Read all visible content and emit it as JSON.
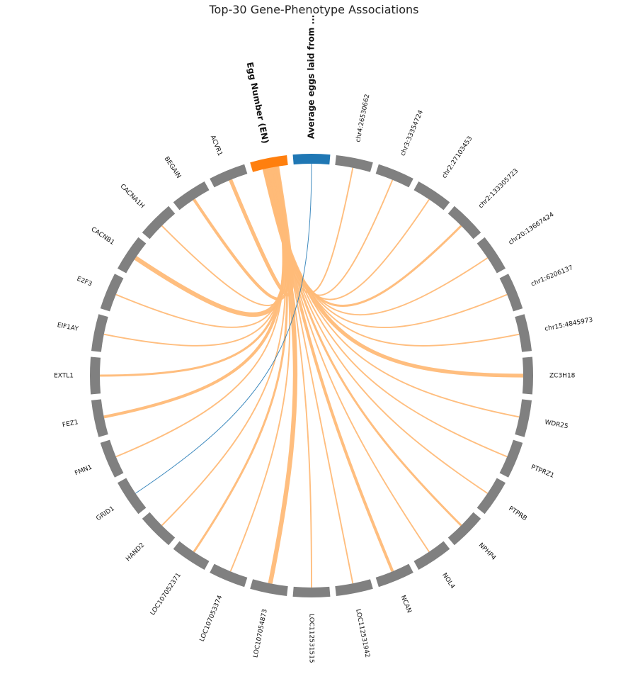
{
  "chart_data": {
    "type": "chord",
    "title": "Top-30 Gene-Phenotype Associations",
    "colors": {
      "phenotype_primary": "#ff7f0e",
      "phenotype_secondary": "#1f77b4",
      "gene": "#808080",
      "link_primary": "#ffbb78"
    },
    "phenotypes": [
      {
        "label": "Egg Number (EN)",
        "color": "#ff7f0e"
      },
      {
        "label": "Average eggs laid from ...",
        "color": "#1f77b4"
      }
    ],
    "genes": [
      "chr4:26530662",
      "chr3:33354724",
      "chr2:27103453",
      "chr2:133305723",
      "chr20:13667424",
      "chr1:6206137",
      "chr15:4845973",
      "ZC3H18",
      "WDR25",
      "PTPRZ1",
      "PTPRB",
      "NPHP4",
      "NOL4",
      "NCAN",
      "LOC112531942",
      "LOC112531515",
      "LOC107054873",
      "LOC107053374",
      "LOC107052371",
      "HAND2",
      "GRID1",
      "FMN1",
      "FEZ1",
      "EXTL1",
      "EIF1AY",
      "E2F3",
      "CACNB1",
      "CACNA1H",
      "BEGAIN",
      "ACVR1"
    ],
    "links": [
      {
        "phenotype": "Egg Number (EN)",
        "gene": "chr4:26530662",
        "strength": 1
      },
      {
        "phenotype": "Egg Number (EN)",
        "gene": "chr3:33354724",
        "strength": 1
      },
      {
        "phenotype": "Egg Number (EN)",
        "gene": "chr2:27103453",
        "strength": 1
      },
      {
        "phenotype": "Egg Number (EN)",
        "gene": "chr2:133305723",
        "strength": 2
      },
      {
        "phenotype": "Egg Number (EN)",
        "gene": "chr20:13667424",
        "strength": 1
      },
      {
        "phenotype": "Egg Number (EN)",
        "gene": "chr1:6206137",
        "strength": 1
      },
      {
        "phenotype": "Egg Number (EN)",
        "gene": "chr15:4845973",
        "strength": 1
      },
      {
        "phenotype": "Egg Number (EN)",
        "gene": "ZC3H18",
        "strength": 4
      },
      {
        "phenotype": "Egg Number (EN)",
        "gene": "WDR25",
        "strength": 1
      },
      {
        "phenotype": "Egg Number (EN)",
        "gene": "PTPRZ1",
        "strength": 1
      },
      {
        "phenotype": "Egg Number (EN)",
        "gene": "PTPRB",
        "strength": 1
      },
      {
        "phenotype": "Egg Number (EN)",
        "gene": "NPHP4",
        "strength": 2
      },
      {
        "phenotype": "Egg Number (EN)",
        "gene": "NOL4",
        "strength": 1
      },
      {
        "phenotype": "Egg Number (EN)",
        "gene": "NCAN",
        "strength": 3
      },
      {
        "phenotype": "Egg Number (EN)",
        "gene": "LOC112531942",
        "strength": 1
      },
      {
        "phenotype": "Egg Number (EN)",
        "gene": "LOC112531515",
        "strength": 1
      },
      {
        "phenotype": "Egg Number (EN)",
        "gene": "LOC107054873",
        "strength": 5
      },
      {
        "phenotype": "Egg Number (EN)",
        "gene": "LOC107053374",
        "strength": 1
      },
      {
        "phenotype": "Egg Number (EN)",
        "gene": "LOC107052371",
        "strength": 2
      },
      {
        "phenotype": "Egg Number (EN)",
        "gene": "HAND2",
        "strength": 1
      },
      {
        "phenotype": "Egg Number (EN)",
        "gene": "FMN1",
        "strength": 1
      },
      {
        "phenotype": "Egg Number (EN)",
        "gene": "FEZ1",
        "strength": 3
      },
      {
        "phenotype": "Egg Number (EN)",
        "gene": "EXTL1",
        "strength": 2
      },
      {
        "phenotype": "Egg Number (EN)",
        "gene": "EIF1AY",
        "strength": 1
      },
      {
        "phenotype": "Egg Number (EN)",
        "gene": "E2F3",
        "strength": 1
      },
      {
        "phenotype": "Egg Number (EN)",
        "gene": "CACNB1",
        "strength": 5
      },
      {
        "phenotype": "Egg Number (EN)",
        "gene": "CACNA1H",
        "strength": 1
      },
      {
        "phenotype": "Egg Number (EN)",
        "gene": "BEGAIN",
        "strength": 3
      },
      {
        "phenotype": "Egg Number (EN)",
        "gene": "ACVR1",
        "strength": 4
      },
      {
        "phenotype": "Average eggs laid from ...",
        "gene": "GRID1",
        "strength": 1
      }
    ]
  }
}
